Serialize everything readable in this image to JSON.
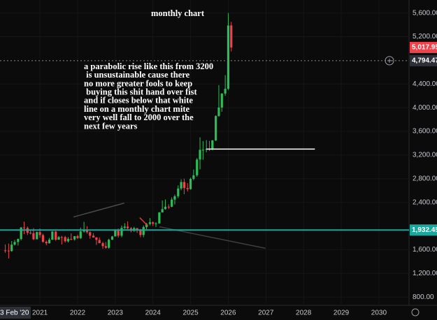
{
  "chart_data": {
    "type": "candlestick",
    "title": "monthly chart",
    "annotation": [
      "a parabolic rise like this from 3200",
      " is unsustainable cause there",
      "no more greater fools to keep",
      " buying this shit hand over fist",
      "and if closes below that white",
      "line on a monthly chart mite",
      "very well fall to 2000 over the",
      "next few years"
    ],
    "x": [
      2020.08,
      2020.17,
      2020.25,
      2020.33,
      2020.42,
      2020.5,
      2020.58,
      2020.67,
      2020.75,
      2020.83,
      2020.92,
      2021.0,
      2021.08,
      2021.17,
      2021.25,
      2021.33,
      2021.42,
      2021.5,
      2021.58,
      2021.67,
      2021.75,
      2021.83,
      2021.92,
      2022.0,
      2022.08,
      2022.17,
      2022.25,
      2022.33,
      2022.42,
      2022.5,
      2022.58,
      2022.67,
      2022.75,
      2022.83,
      2022.92,
      2023.0,
      2023.08,
      2023.17,
      2023.25,
      2023.33,
      2023.42,
      2023.5,
      2023.58,
      2023.67,
      2023.75,
      2023.83,
      2023.92,
      2024.0,
      2024.08,
      2024.17,
      2024.25,
      2024.33,
      2024.42,
      2024.5,
      2024.58,
      2024.67,
      2024.75,
      2024.83,
      2024.92,
      2025.0,
      2025.08,
      2025.17,
      2025.25,
      2025.33,
      2025.42,
      2025.5,
      2025.58,
      2025.67,
      2025.75,
      2025.83,
      2025.92,
      2026.0,
      2026.08
    ],
    "open": [
      1589,
      1585,
      1577,
      1686,
      1730,
      1781,
      1975,
      1968,
      1886,
      1879,
      1776,
      1898,
      1847,
      1734,
      1708,
      1769,
      1906,
      1770,
      1814,
      1813,
      1742,
      1783,
      1774,
      1829,
      1797,
      1909,
      1937,
      1896,
      1837,
      1807,
      1766,
      1711,
      1660,
      1633,
      1768,
      1824,
      1928,
      1837,
      1969,
      1990,
      1963,
      1919,
      1965,
      1940,
      1849,
      1983,
      2036,
      2063,
      2039,
      2044,
      2230,
      2286,
      2327,
      2326,
      2447,
      2503,
      2634,
      2744,
      2643,
      2624,
      2798,
      2858,
      3124,
      3288,
      3289,
      3303,
      3290,
      3448,
      3858,
      4003,
      4239,
      4319,
      5390
    ],
    "high": [
      1689,
      1704,
      1747,
      1765,
      1789,
      1984,
      2075,
      1992,
      1933,
      1966,
      1906,
      1959,
      1871,
      1755,
      1798,
      1916,
      1917,
      1832,
      1834,
      1834,
      1814,
      1877,
      1831,
      1853,
      1974,
      2070,
      1998,
      1910,
      1879,
      1814,
      1807,
      1735,
      1730,
      1786,
      1833,
      1949,
      1959,
      2009,
      2048,
      2079,
      1983,
      1987,
      1966,
      1953,
      2009,
      2052,
      2135,
      2079,
      2065,
      2236,
      2432,
      2450,
      2368,
      2484,
      2531,
      2686,
      2790,
      2801,
      2726,
      2817,
      2956,
      3149,
      3500,
      3435,
      3452,
      3439,
      3453,
      3871,
      4381,
      4245,
      4550,
      5600,
      5450
    ],
    "low": [
      1547,
      1451,
      1567,
      1670,
      1671,
      1757,
      1863,
      1849,
      1860,
      1764,
      1775,
      1802,
      1717,
      1677,
      1706,
      1766,
      1750,
      1767,
      1688,
      1721,
      1721,
      1759,
      1753,
      1780,
      1780,
      1890,
      1872,
      1787,
      1805,
      1681,
      1709,
      1615,
      1617,
      1616,
      1765,
      1823,
      1804,
      1810,
      1950,
      1932,
      1893,
      1903,
      1885,
      1811,
      1810,
      1931,
      2010,
      2002,
      1984,
      2039,
      2228,
      2277,
      2287,
      2318,
      2365,
      2471,
      2604,
      2537,
      2583,
      2614,
      2773,
      2833,
      2957,
      3121,
      3247,
      3268,
      3281,
      3436,
      3850,
      3930,
      4200,
      4300,
      4950
    ],
    "close": [
      1585,
      1577,
      1686,
      1730,
      1781,
      1975,
      1968,
      1886,
      1879,
      1776,
      1898,
      1847,
      1734,
      1708,
      1769,
      1906,
      1770,
      1814,
      1813,
      1742,
      1783,
      1774,
      1829,
      1797,
      1909,
      1937,
      1896,
      1837,
      1807,
      1766,
      1711,
      1660,
      1633,
      1768,
      1824,
      1928,
      1837,
      1969,
      1990,
      1963,
      1919,
      1965,
      1940,
      1849,
      1983,
      2036,
      2063,
      2039,
      2044,
      2230,
      2286,
      2327,
      2326,
      2447,
      2503,
      2634,
      2744,
      2643,
      2624,
      2798,
      2858,
      3124,
      3288,
      3289,
      3303,
      3290,
      3448,
      3858,
      4003,
      4239,
      4319,
      5390,
      5017.95
    ],
    "up_color": "#2dbd57",
    "down_color": "#f0424a",
    "xlim": [
      2019.94,
      2030.8
    ],
    "xticks": [
      2021,
      2022,
      2023,
      2024,
      2025,
      2026,
      2027,
      2028,
      2029,
      2030
    ],
    "ylim": [
      660,
      5820
    ],
    "yticks": [
      {
        "value": 800,
        "label": "800.00"
      },
      {
        "value": 1200,
        "label": "1,200.00"
      },
      {
        "value": 1600,
        "label": "1,600.00"
      },
      {
        "value": 2400,
        "label": "2,400.00"
      },
      {
        "value": 2800,
        "label": "2,800.00"
      },
      {
        "value": 3200,
        "label": "3,200.00"
      },
      {
        "value": 3600,
        "label": "3,600.00"
      },
      {
        "value": 4000,
        "label": "4,000.00"
      },
      {
        "value": 4400,
        "label": "4,400.00"
      },
      {
        "value": 5200,
        "label": "5,200.00"
      },
      {
        "value": 5600,
        "label": "5,600.00"
      }
    ],
    "grid": true,
    "last_price": {
      "value": 5017.95,
      "label": "5,017.95"
    },
    "crosshair_price": {
      "value": 4794.47,
      "label": "4,794.47"
    },
    "crosshair_date": "3 Feb '20",
    "horizontal_line": {
      "value": 1932.45,
      "label": "1,932.45",
      "color": "#1aa89c"
    },
    "trend_lines": [
      {
        "x": [
          2021.89,
          2023.24
        ],
        "y": [
          2153,
          2388
        ],
        "color": "#4a4a4a"
      },
      {
        "x": [
          2024.17,
          2026.99
        ],
        "y": [
          1988,
          1624
        ],
        "color": "#3e3e3e"
      },
      {
        "x": [
          2023.65,
          2023.87
        ],
        "y": [
          2141,
          2000
        ],
        "color": "#e53935"
      },
      {
        "x": [
          2025.42,
          2028.3
        ],
        "y": [
          3300,
          3300
        ],
        "color": "#ffffff"
      }
    ]
  }
}
